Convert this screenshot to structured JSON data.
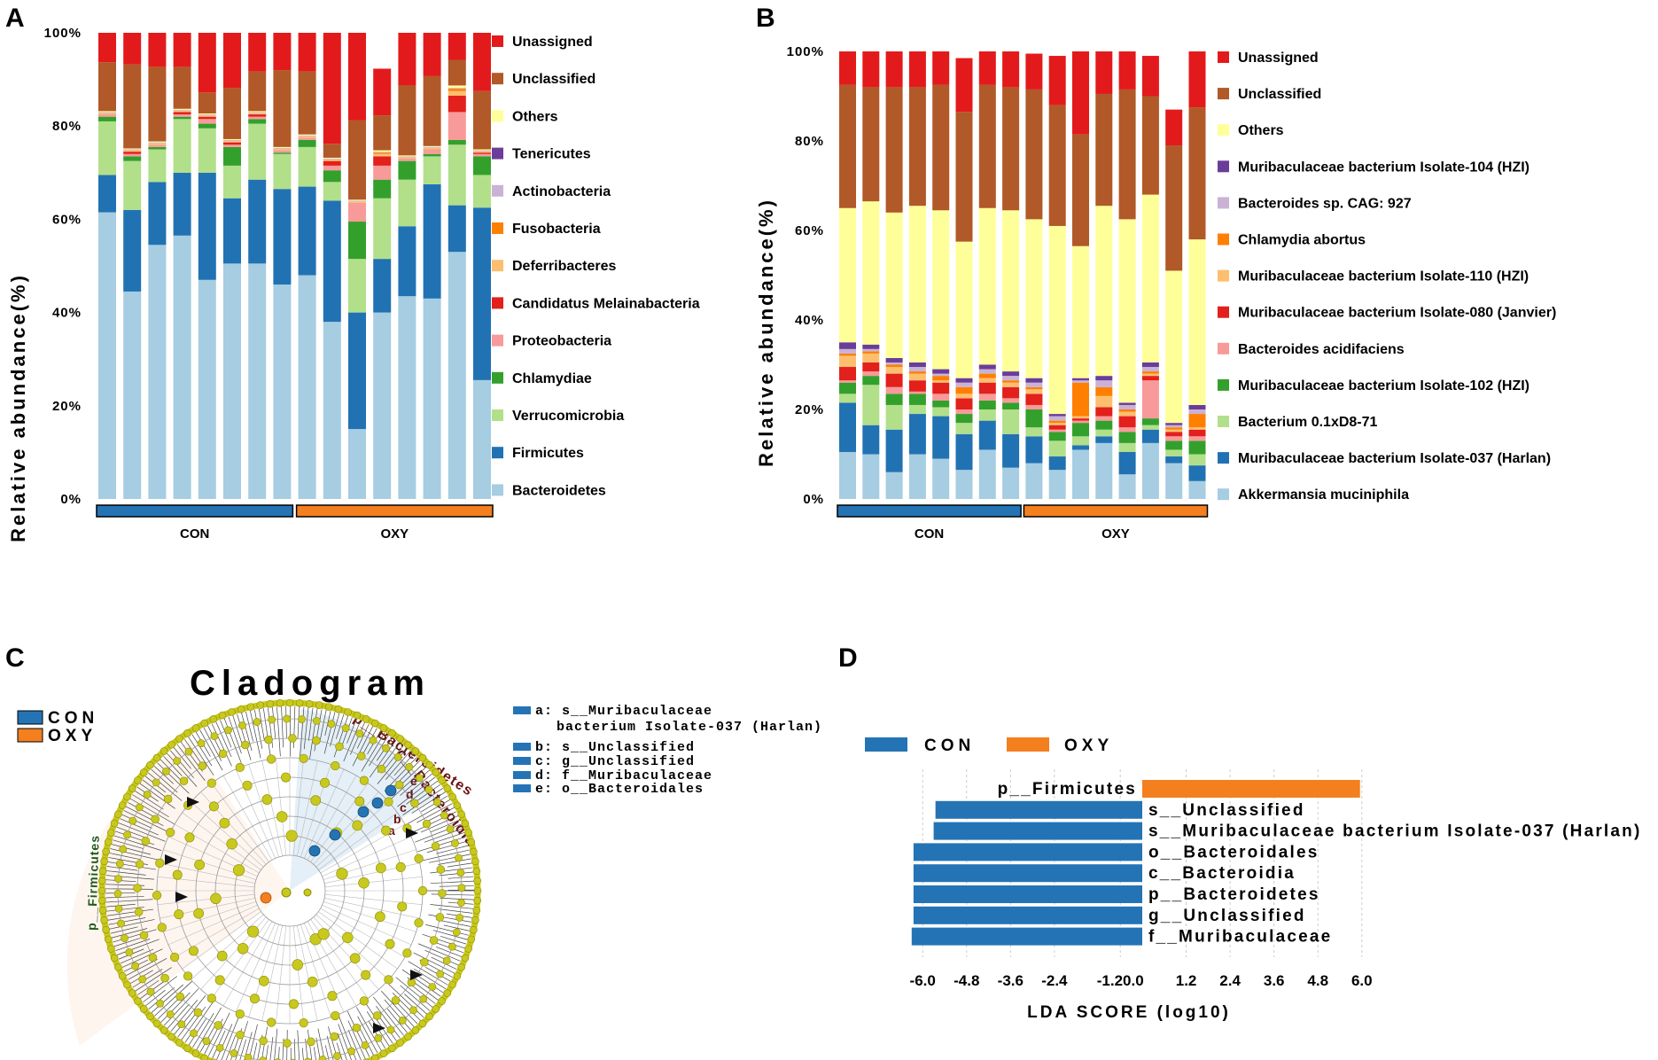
{
  "panels": {
    "a": "A",
    "b": "B",
    "c": "C",
    "d": "D"
  },
  "chart_data": [
    {
      "id": "A",
      "type": "bar",
      "stacked": true,
      "ylabel": "Relative abundance(%)",
      "ylim": [
        0,
        100
      ],
      "yticks": [
        "0%",
        "20%",
        "40%",
        "60%",
        "80%",
        "100%"
      ],
      "groups": [
        {
          "name": "CON",
          "samples": 8,
          "color": "#2474b5"
        },
        {
          "name": "OXY",
          "samples": 8,
          "color": "#f47f1f"
        }
      ],
      "series": [
        {
          "name": "Bacteroidetes",
          "color": "#a6cde1",
          "values": [
            61.5,
            44.5,
            54.5,
            56.5,
            47,
            50.5,
            50.5,
            46,
            48,
            38,
            15,
            40,
            43.5,
            43,
            53,
            25.5
          ]
        },
        {
          "name": "Firmicutes",
          "color": "#2172b3",
          "values": [
            8,
            17.5,
            13.5,
            13.5,
            23,
            14,
            18,
            20.5,
            19,
            26,
            25,
            11.5,
            15,
            24.5,
            10,
            37
          ]
        },
        {
          "name": "Verrucomicrobia",
          "color": "#b2df8a",
          "values": [
            11.5,
            10.5,
            7,
            11.5,
            9.5,
            7,
            12,
            7.5,
            8.5,
            4,
            11.5,
            13,
            10,
            6,
            13,
            7
          ]
        },
        {
          "name": "Chlamydiae",
          "color": "#34a02c",
          "values": [
            1,
            1,
            0.5,
            0.5,
            1,
            4,
            1,
            0.3,
            1.5,
            2.5,
            8,
            4,
            4,
            0.5,
            1,
            4
          ]
        },
        {
          "name": "Proteobacteria",
          "color": "#f89a99",
          "values": [
            0.5,
            0.5,
            0.5,
            0.5,
            1,
            0.5,
            0.5,
            0.5,
            0.5,
            1,
            4,
            3,
            0.5,
            1,
            6,
            0.5
          ]
        },
        {
          "name": "Candidatus  Melainabacteria",
          "color": "#e2201c",
          "values": [
            0,
            0.5,
            0,
            0.5,
            0.5,
            0.5,
            0.5,
            0,
            0,
            1,
            0,
            2,
            0,
            0,
            3.5,
            0.3
          ]
        },
        {
          "name": "Deferribacteres",
          "color": "#fdbf6f",
          "values": [
            0.3,
            0.3,
            0.3,
            0.3,
            0.3,
            0.3,
            0.3,
            0.3,
            0.3,
            0.3,
            0.3,
            0.5,
            0.3,
            0.3,
            1,
            0.3
          ]
        },
        {
          "name": "Fusobacteria",
          "color": "#ff7f00",
          "values": [
            0,
            0,
            0,
            0,
            0,
            0,
            0,
            0,
            0,
            0,
            0,
            0.3,
            0,
            0,
            0.5,
            0
          ]
        },
        {
          "name": "Actinobacteria",
          "color": "#cab2d6",
          "values": [
            0.2,
            0.2,
            0.2,
            0.2,
            0.2,
            0.2,
            0.2,
            0.2,
            0.2,
            0.2,
            0.2,
            0.2,
            0.2,
            0.2,
            0.2,
            0.2
          ]
        },
        {
          "name": "Tenericutes",
          "color": "#6a3d9a",
          "values": [
            0,
            0,
            0,
            0,
            0,
            0,
            0,
            0,
            0,
            0,
            0,
            0,
            0,
            0,
            0,
            0
          ]
        },
        {
          "name": "Others",
          "color": "#ffff99",
          "values": [
            0.2,
            0.2,
            0.2,
            0.2,
            0.2,
            0.2,
            0.2,
            0.2,
            0.2,
            0.2,
            0.2,
            0.3,
            0.2,
            0.2,
            0.5,
            0.2
          ]
        },
        {
          "name": "Unclassified",
          "color": "#b15928",
          "values": [
            10.5,
            18,
            16,
            9,
            4.5,
            11,
            8.5,
            16.5,
            13.5,
            3,
            17,
            7.5,
            15,
            15,
            5.5,
            12.5
          ]
        },
        {
          "name": "Unassigned",
          "color": "#e31a1c",
          "values": [
            6.3,
            6.8,
            7.8,
            7.3,
            12.8,
            11.8,
            8.3,
            8.3,
            8.8,
            23.8,
            18.8,
            10,
            11.3,
            9.3,
            5.8,
            12.5
          ]
        }
      ]
    },
    {
      "id": "B",
      "type": "bar",
      "stacked": true,
      "ylabel": "Relative    abundance(%)",
      "ylim": [
        0,
        100
      ],
      "yticks": [
        "0%",
        "20%",
        "40%",
        "60%",
        "80%",
        "100%"
      ],
      "groups": [
        {
          "name": "CON",
          "samples": 8,
          "color": "#2474b5"
        },
        {
          "name": "OXY",
          "samples": 8,
          "color": "#f47f1f"
        }
      ],
      "series": [
        {
          "name": "Akkermansia muciniphila",
          "color": "#a6cde1",
          "values": [
            10.5,
            10,
            6,
            10,
            9,
            6.5,
            11,
            7,
            8,
            6.5,
            11,
            12.5,
            5.5,
            12.5,
            8,
            4
          ]
        },
        {
          "name": "Muribaculaceae bacterium Isolate-037 (Harlan)",
          "color": "#2172b3",
          "values": [
            11,
            6.5,
            9.5,
            9,
            9.5,
            8,
            6.5,
            7.5,
            6,
            3,
            1,
            1.5,
            5,
            3,
            1.5,
            3.5
          ]
        },
        {
          "name": "Bacterium 0.1xD8-71",
          "color": "#b2df8a",
          "values": [
            2,
            9,
            5.5,
            2,
            2,
            2.5,
            2.5,
            5.5,
            2,
            3.5,
            2,
            1.5,
            2,
            1,
            1.5,
            2.5
          ]
        },
        {
          "name": "Muribaculaceae bacterium Isolate-102 (HZI)",
          "color": "#34a02c",
          "values": [
            2.5,
            2,
            2.5,
            2.5,
            1.5,
            2,
            2,
            1.5,
            4,
            2,
            3,
            2,
            2.5,
            1.5,
            2,
            3
          ]
        },
        {
          "name": "Bacteroides acidifaciens",
          "color": "#f89a99",
          "values": [
            0.5,
            1,
            1.5,
            0.5,
            1.5,
            1,
            1.5,
            1,
            1,
            0.5,
            0.5,
            1,
            1,
            8.5,
            1,
            1
          ]
        },
        {
          "name": "Muribaculaceae bacterium Isolate-080 (Janvier)",
          "color": "#e2201c",
          "values": [
            3,
            2,
            3,
            2.5,
            2.5,
            2.5,
            2.5,
            2.5,
            2.5,
            1,
            0.5,
            2,
            2.5,
            1,
            1,
            1.5
          ]
        },
        {
          "name": "Muribaculaceae bacterium Isolate-110 (HZI)",
          "color": "#fdbf6f",
          "values": [
            2.5,
            2,
            1.5,
            1.5,
            0.5,
            1,
            1,
            1,
            1,
            0.5,
            0.5,
            2.5,
            1,
            0.5,
            0.5,
            0.5
          ]
        },
        {
          "name": "Chlamydia abortus",
          "color": "#ff7f00",
          "values": [
            0.5,
            0.5,
            0.5,
            0.5,
            1,
            1.5,
            1,
            0.5,
            0.5,
            0.5,
            7.5,
            2,
            0.5,
            0.5,
            0.5,
            3
          ]
        },
        {
          "name": "Bacteroides sp. CAG: 927",
          "color": "#cab2d6",
          "values": [
            1,
            0.5,
            0.5,
            1,
            0.5,
            1,
            1,
            1,
            1,
            1,
            0.5,
            1.5,
            1,
            1,
            0.5,
            1
          ]
        },
        {
          "name": "Muribaculaceae bacterium Isolate-104 (HZI)",
          "color": "#6a3d9a",
          "values": [
            1.5,
            1,
            1,
            1,
            1,
            1,
            1,
            1,
            1,
            0.5,
            0.5,
            1,
            0.5,
            1,
            0.5,
            1
          ]
        },
        {
          "name": "Others",
          "color": "#ffff99",
          "values": [
            30,
            32,
            32.5,
            35,
            35.5,
            30.5,
            35,
            36,
            35.5,
            42,
            29.5,
            38,
            41,
            37.5,
            34,
            37
          ]
        },
        {
          "name": "Unclassified",
          "color": "#b15928",
          "values": [
            27.5,
            25.5,
            28,
            26.5,
            28,
            29,
            27.5,
            27.5,
            29,
            27,
            25,
            25,
            29,
            22,
            28,
            29.5
          ]
        },
        {
          "name": "Unassigned",
          "color": "#e31a1c",
          "values": [
            7.5,
            8,
            8,
            8,
            8,
            12,
            8.5,
            8,
            8,
            11,
            18.5,
            10,
            8.5,
            9,
            8,
            13
          ]
        }
      ]
    },
    {
      "id": "D",
      "type": "bar",
      "orientation": "horizontal",
      "xlabel": "LDA SCORE (log10)",
      "xlim": [
        -6.6,
        6.6
      ],
      "xticks": [
        "-6.0",
        "-4.8",
        "-3.6",
        "-2.4",
        "-1.20.0",
        "1.2",
        "2.4",
        "3.6",
        "4.8",
        "6.0"
      ],
      "xtick_values": [
        -6.0,
        -4.8,
        -3.6,
        -2.4,
        -0.6,
        1.2,
        2.4,
        3.6,
        4.8,
        6.0
      ],
      "legend": [
        {
          "name": "CON",
          "color": "#2474b5"
        },
        {
          "name": "OXY",
          "color": "#f47f1f"
        }
      ],
      "bars": [
        {
          "label": "p__Firmicutes",
          "value": 5.95,
          "group": "OXY"
        },
        {
          "label": "s__Unclassified",
          "value": -5.65,
          "group": "CON"
        },
        {
          "label": "s__Muribaculaceae bacterium Isolate-037 (Harlan)",
          "value": -5.7,
          "group": "CON"
        },
        {
          "label": "o__Bacteroidales",
          "value": -6.25,
          "group": "CON"
        },
        {
          "label": "c__Bacteroidia",
          "value": -6.25,
          "group": "CON"
        },
        {
          "label": "p__Bacteroidetes",
          "value": -6.25,
          "group": "CON"
        },
        {
          "label": "g__Unclassified",
          "value": -6.25,
          "group": "CON"
        },
        {
          "label": "f__Muribaculaceae",
          "value": -6.3,
          "group": "CON"
        }
      ]
    }
  ],
  "cladogram": {
    "title": "Cladogram",
    "legend": [
      {
        "name": "CON",
        "color": "#2474b5"
      },
      {
        "name": "OXY",
        "color": "#f47f1f"
      }
    ],
    "key": [
      "a: s__Muribaculaceae",
      "bacterium Isolate-037 (Harlan)",
      "b: s__Unclassified",
      "c: g__Unclassified",
      "d: f__Muribaculaceae",
      "e: o__Bacteroidales"
    ],
    "labels": {
      "firmicutes": "p__Firmicutes",
      "bacteroidetes": "p__Bacteroidetes",
      "bacteroidia": "c__Bacteroidia",
      "letters": [
        "e",
        "d",
        "c",
        "b",
        "a"
      ]
    },
    "colors": {
      "node": "#c8c81e",
      "node_stroke": "#8c8c00",
      "con": "#2474b5",
      "oxy": "#f47f1f",
      "branch": "#444444"
    }
  }
}
